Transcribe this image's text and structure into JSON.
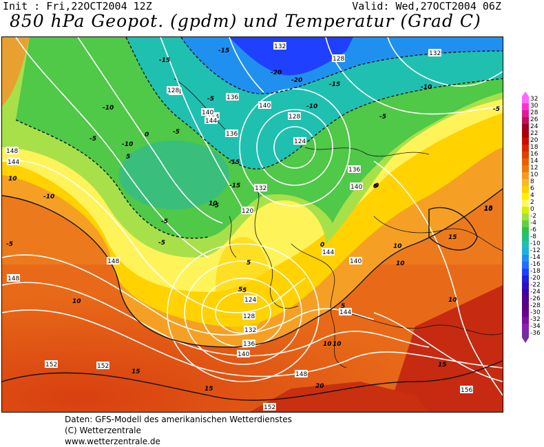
{
  "header": {
    "init": "Init : Fri,22OCT2004 12Z",
    "valid": "Valid: Wed,27OCT2004 06Z",
    "title": "850 hPa Geopot. (gpdm) und Temperatur (Grad C)"
  },
  "legend": {
    "values": [
      "32",
      "30",
      "28",
      "26",
      "24",
      "22",
      "20",
      "18",
      "16",
      "14",
      "12",
      "10",
      "8",
      "6",
      "4",
      "2",
      "0",
      "-2",
      "-4",
      "-6",
      "-8",
      "-10",
      "-12",
      "-14",
      "-16",
      "-18",
      "-20",
      "-22",
      "-24",
      "-26",
      "-28",
      "-30",
      "-32",
      "-34",
      "-36"
    ],
    "colors": [
      "#ff66ff",
      "#ff33cc",
      "#e01a9a",
      "#c01060",
      "#a00020",
      "#b00000",
      "#c81000",
      "#d82800",
      "#e04000",
      "#e86000",
      "#ef7810",
      "#f59a20",
      "#f8b828",
      "#ffd000",
      "#fff000",
      "#fff86a",
      "#d8f000",
      "#a0e040",
      "#60d040",
      "#30c050",
      "#20c080",
      "#20c0b0",
      "#20b0e0",
      "#2090f0",
      "#2070ff",
      "#2040ff",
      "#2020e0",
      "#3010c0",
      "#4000a0",
      "#500090",
      "#5a0080",
      "#6a0090",
      "#7a10a0",
      "#8a20b0",
      "#7030a0"
    ]
  },
  "map": {
    "geopotential_labels": [
      "132",
      "128",
      "124",
      "136",
      "140",
      "144",
      "128",
      "124",
      "120",
      "132",
      "136",
      "140",
      "144",
      "148",
      "148",
      "152",
      "152",
      "152",
      "148",
      "144",
      "140",
      "136",
      "132",
      "128",
      "124",
      "156",
      "148",
      "144",
      "136",
      "140",
      "144",
      "140",
      "132",
      "128"
    ],
    "temperature_labels": [
      "-15",
      "-15",
      "-10",
      "-10",
      "-5",
      "-5",
      "0",
      "-5",
      "-15",
      "-20",
      "-20",
      "-15",
      "-10",
      "-5",
      "-10",
      "-5",
      "0",
      "5",
      "-5",
      "-15",
      "-10",
      "-5",
      "-5",
      "0",
      "5",
      "10",
      "15",
      "10",
      "15",
      "10",
      "15",
      "20",
      "15",
      "10",
      "10",
      "10",
      "15",
      "10",
      "5",
      "5",
      "0",
      "5",
      "-5",
      "10",
      "10"
    ]
  },
  "footer": {
    "line1": "Daten: GFS-Modell des amerikanischen Wetterdienstes",
    "line2": "(C) Wetterzentrale",
    "line3": "www.wetterzentrale.de"
  }
}
